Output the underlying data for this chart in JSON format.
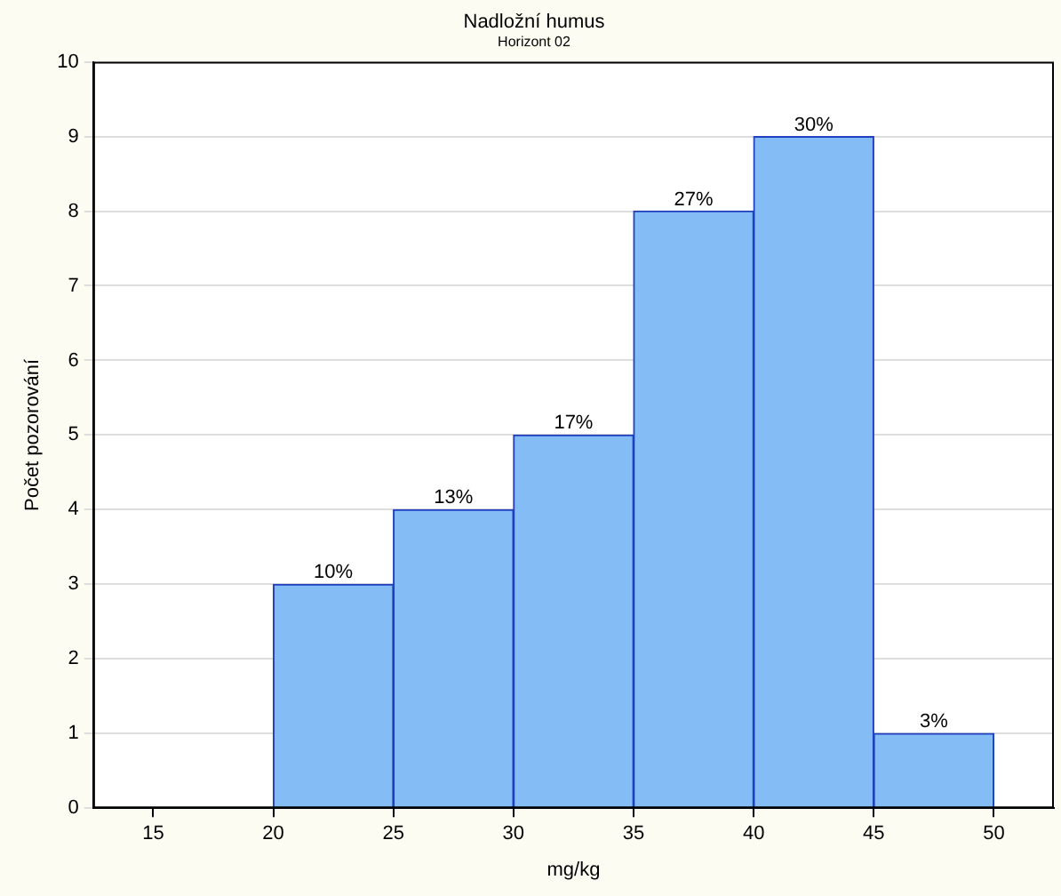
{
  "chart_data": {
    "type": "histogram",
    "title": "Nadložní humus",
    "subtitle": "Horizont 02",
    "xlabel": "mg/kg",
    "ylabel": "Počet pozorování",
    "bins": [
      15,
      20,
      25,
      30,
      35,
      40,
      45,
      50
    ],
    "values": [
      0,
      3,
      4,
      5,
      8,
      9,
      1
    ],
    "annotations": [
      {
        "text": "10%",
        "x": 22.5,
        "y": 3
      },
      {
        "text": "13%",
        "x": 27.5,
        "y": 4
      },
      {
        "text": "17%",
        "x": 32.5,
        "y": 5
      },
      {
        "text": "27%",
        "x": 37.5,
        "y": 8
      },
      {
        "text": "30%",
        "x": 42.5,
        "y": 9
      },
      {
        "text": "3%",
        "x": 47.5,
        "y": 1
      }
    ],
    "color": "#84bdf5",
    "xlim": [
      12.5,
      52.5
    ],
    "xticks": [
      15,
      20,
      25,
      30,
      35,
      40,
      45,
      50
    ],
    "ylim": [
      0,
      10
    ],
    "yticks": [
      0,
      1,
      2,
      3,
      4,
      5,
      6,
      7,
      8,
      9,
      10
    ],
    "grid": "y",
    "legend": false
  }
}
